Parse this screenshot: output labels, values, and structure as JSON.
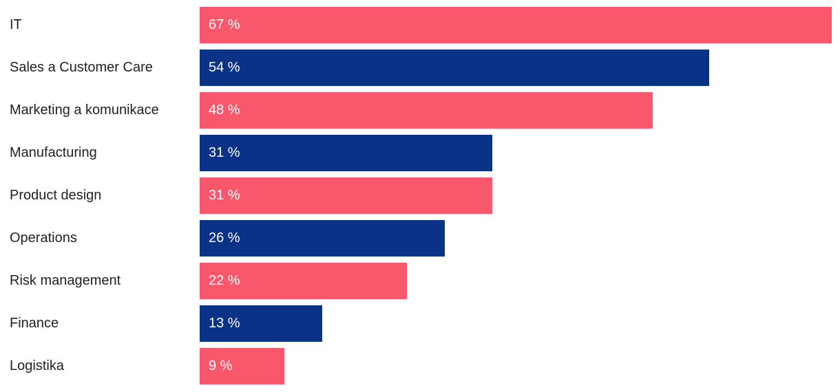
{
  "chart_data": {
    "type": "bar",
    "orientation": "horizontal",
    "title": "",
    "xlabel": "",
    "ylabel": "",
    "grid": false,
    "legend": false,
    "xlim": [
      0,
      68
    ],
    "categories": [
      "IT",
      "Sales a Customer Care",
      "Marketing a komunikace",
      "Manufacturing",
      "Product design",
      "Operations",
      "Risk management",
      "Finance",
      "Logistika"
    ],
    "values": [
      67,
      54,
      48,
      31,
      31,
      26,
      22,
      13,
      9
    ],
    "value_labels": [
      "67 %",
      "54 %",
      "48 %",
      "31 %",
      "31 %",
      "26 %",
      "22 %",
      "13 %",
      "9 %"
    ],
    "bar_colors": [
      "#F8576C",
      "#0A3387",
      "#F8576C",
      "#0A3387",
      "#F8576C",
      "#0A3387",
      "#F8576C",
      "#0A3387",
      "#F8576C"
    ],
    "colors": {
      "pink": "#F8576C",
      "navy": "#0A3387",
      "category_text": "#212121",
      "bar_value_text": "#FFFFFF",
      "background": "#FFFFFF"
    }
  }
}
